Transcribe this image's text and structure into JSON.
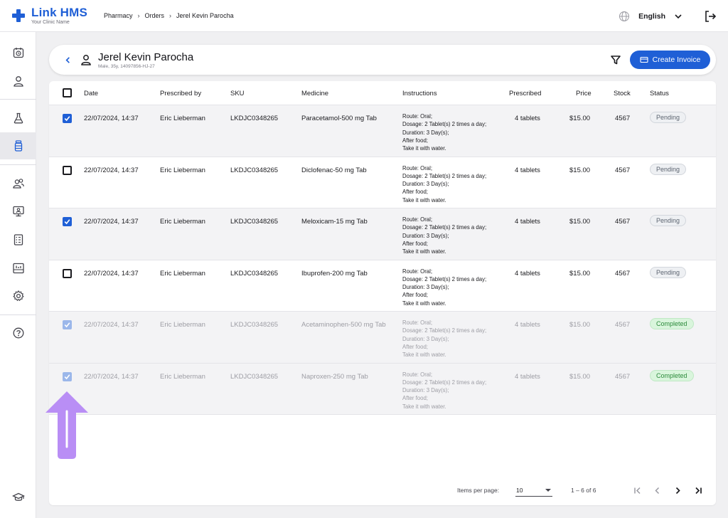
{
  "brand": {
    "name": "Link HMS",
    "subtitle": "Your Clinic Name",
    "accent": "#1f5fd6"
  },
  "breadcrumb": [
    "Pharmacy",
    "Orders",
    "Jerel Kevin Parocha"
  ],
  "header_right": {
    "language": "English"
  },
  "patient": {
    "name": "Jerel Kevin Parocha",
    "meta": "Male, 35y, 14097856-HJ-27"
  },
  "actions": {
    "create_invoice": "Create Invoice"
  },
  "sidebar": {
    "icons": [
      "calendar-icon",
      "person-icon",
      "flask-icon",
      "medicine-bottle-icon",
      "group-icon",
      "monitor-icon",
      "document-icon",
      "report-icon",
      "gear-icon",
      "help-icon",
      "graduation-cap-icon"
    ],
    "active": "medicine-bottle-icon"
  },
  "table": {
    "columns": [
      "Date",
      "Prescribed by",
      "SKU",
      "Medicine",
      "Instructions",
      "Prescribed",
      "Price",
      "Stock",
      "Status"
    ],
    "rows": [
      {
        "checked": true,
        "state": "active",
        "date": "22/07/2024, 14:37",
        "prescribed_by": "Eric Lieberman",
        "sku": "LKDJC0348265",
        "medicine": "Paracetamol-500 mg Tab",
        "instructions": [
          "Route: Oral;",
          "Dosage: 2 Tablet(s) 2 times a day;",
          "Duration: 3 Day(s);",
          "After food;",
          "Take it with water."
        ],
        "prescribed": "4 tablets",
        "price": "$15.00",
        "stock": "4567",
        "status": "Pending"
      },
      {
        "checked": false,
        "state": "active",
        "date": "22/07/2024, 14:37",
        "prescribed_by": "Eric Lieberman",
        "sku": "LKDJC0348265",
        "medicine": "Diclofenac-50 mg Tab",
        "instructions": [
          "Route: Oral;",
          "Dosage: 2 Tablet(s) 2 times a day;",
          "Duration: 3 Day(s);",
          "After food;",
          "Take it with water."
        ],
        "prescribed": "4 tablets",
        "price": "$15.00",
        "stock": "4567",
        "status": "Pending"
      },
      {
        "checked": true,
        "state": "active",
        "date": "22/07/2024, 14:37",
        "prescribed_by": "Eric Lieberman",
        "sku": "LKDJC0348265",
        "medicine": "Meloxicam-15 mg Tab",
        "instructions": [
          "Route: Oral;",
          "Dosage: 2 Tablet(s) 2 times a day;",
          "Duration: 3 Day(s);",
          "After food;",
          "Take it with water."
        ],
        "prescribed": "4 tablets",
        "price": "$15.00",
        "stock": "4567",
        "status": "Pending"
      },
      {
        "checked": false,
        "state": "active",
        "date": "22/07/2024, 14:37",
        "prescribed_by": "Eric Lieberman",
        "sku": "LKDJC0348265",
        "medicine": "Ibuprofen-200 mg Tab",
        "instructions": [
          "Route: Oral;",
          "Dosage: 2 Tablet(s) 2 times a day;",
          "Duration: 3 Day(s);",
          "After food;",
          "Take it with water."
        ],
        "prescribed": "4 tablets",
        "price": "$15.00",
        "stock": "4567",
        "status": "Pending"
      },
      {
        "checked": true,
        "state": "done",
        "date": "22/07/2024, 14:37",
        "prescribed_by": "Eric Lieberman",
        "sku": "LKDJC0348265",
        "medicine": "Acetaminophen-500 mg Tab",
        "instructions": [
          "Route: Oral;",
          "Dosage: 2 Tablet(s) 2 times a day;",
          "Duration: 3 Day(s);",
          "After food;",
          "Take it with water."
        ],
        "prescribed": "4 tablets",
        "price": "$15.00",
        "stock": "4567",
        "status": "Completed"
      },
      {
        "checked": true,
        "state": "done",
        "date": "22/07/2024, 14:37",
        "prescribed_by": "Eric Lieberman",
        "sku": "LKDJC0348265",
        "medicine": "Naproxen-250 mg Tab",
        "instructions": [
          "Route: Oral;",
          "Dosage: 2 Tablet(s) 2 times a day;",
          "Duration: 3 Day(s);",
          "After food;",
          "Take it with water."
        ],
        "prescribed": "4 tablets",
        "price": "$15.00",
        "stock": "4567",
        "status": "Completed"
      }
    ]
  },
  "pagination": {
    "items_per_page_label": "Items per page:",
    "items_per_page": "10",
    "range": "1 – 6 of 6"
  },
  "colors": {
    "pending_bg": "#eef0f3",
    "completed_bg": "#d9f5dc",
    "completed_text": "#2c8a3b",
    "annotation_arrow": "#b98ef5"
  }
}
